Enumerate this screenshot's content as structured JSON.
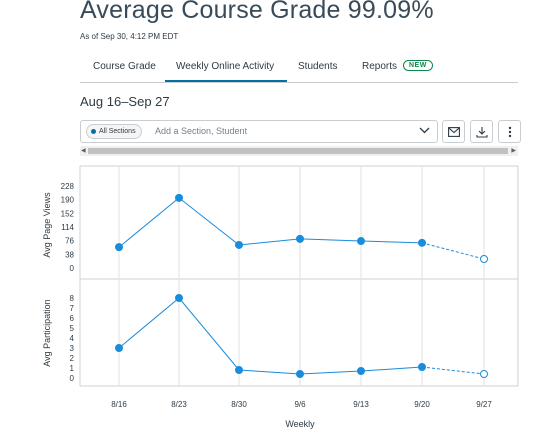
{
  "header": {
    "title": "Average Course Grade  99.09%",
    "as_of": "As of Sep 30, 4:12 PM EDT"
  },
  "tabs": [
    {
      "label": "Course Grade"
    },
    {
      "label": "Weekly Online Activity",
      "active": true
    },
    {
      "label": "Students"
    },
    {
      "label": "Reports",
      "badge": "NEW"
    }
  ],
  "date_range": "Aug 16–Sep 27",
  "filter": {
    "chip_label": "All Sections",
    "placeholder": "Add a Section, Student"
  },
  "icons": {
    "dropdown": "chevron-down-icon",
    "message": "envelope-icon",
    "download": "download-icon",
    "more": "more-vertical-icon"
  },
  "colors": {
    "series": "#1a8cdc",
    "accent": "#0770a3",
    "badge": "#0b874b"
  },
  "chart_data": [
    {
      "type": "line",
      "ylabel": "Avg Page Views",
      "x": [
        "8/16",
        "8/23",
        "8/30",
        "9/6",
        "9/13",
        "9/20",
        "9/27"
      ],
      "values": [
        58,
        195,
        64,
        81,
        75,
        70,
        25
      ],
      "projected_from_index": 5,
      "yticks": [
        "0",
        "38",
        "76",
        "114",
        "152",
        "190",
        "228"
      ],
      "ylim": [
        0,
        228
      ]
    },
    {
      "type": "line",
      "ylabel": "Avg Participation",
      "x": [
        "8/16",
        "8/23",
        "8/30",
        "9/6",
        "9/13",
        "9/20",
        "9/27"
      ],
      "values": [
        3,
        8,
        0.8,
        0.4,
        0.7,
        1.1,
        0.4
      ],
      "projected_from_index": 5,
      "yticks": [
        "0",
        "1",
        "2",
        "3",
        "4",
        "5",
        "6",
        "7",
        "8"
      ],
      "ylim": [
        0,
        8.6
      ]
    }
  ],
  "xlabel": "Weekly"
}
